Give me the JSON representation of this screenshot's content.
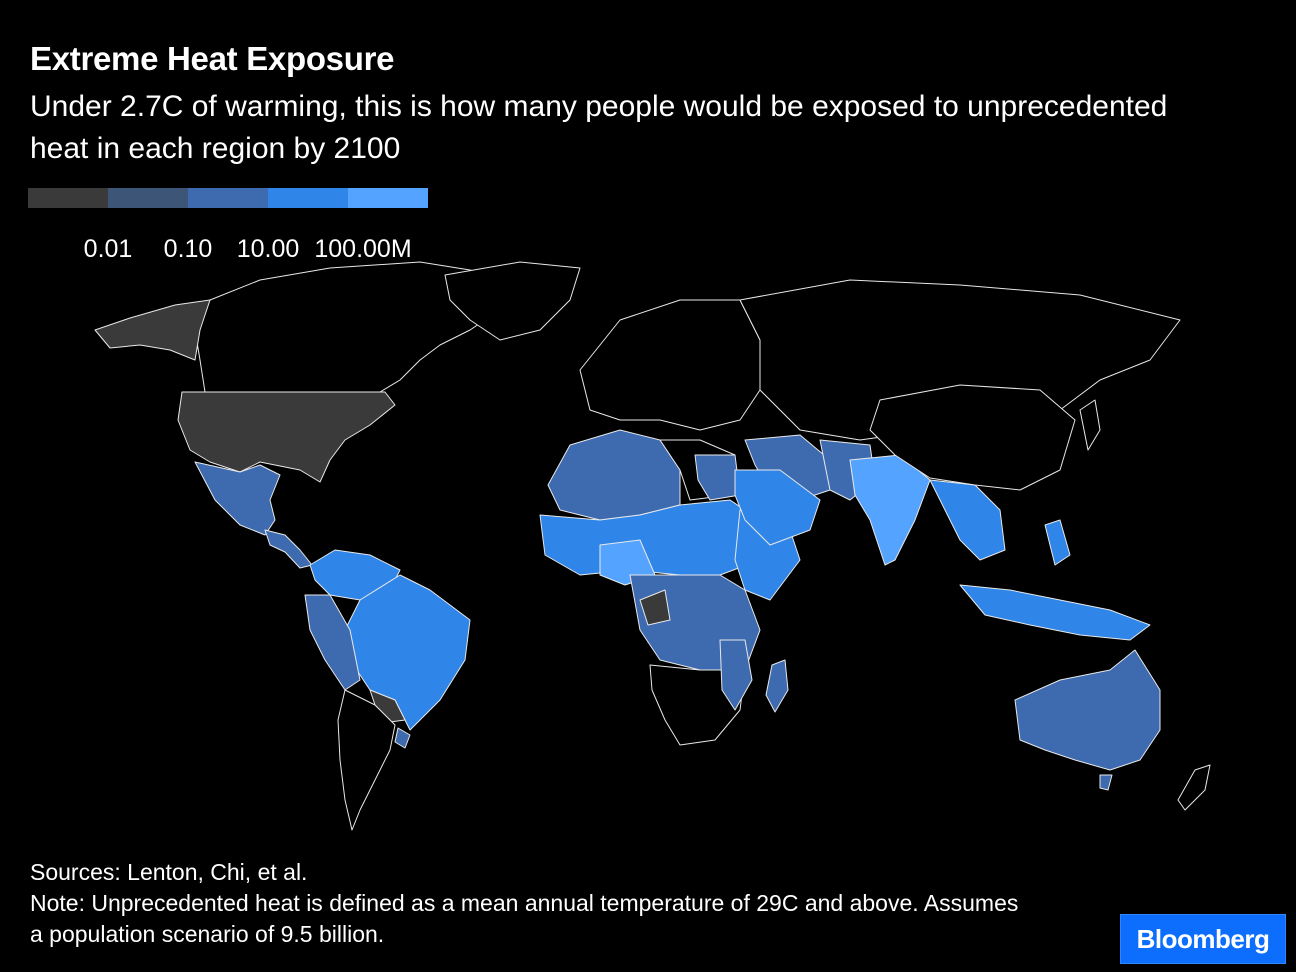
{
  "title": "Extreme Heat Exposure",
  "subtitle": "Under 2.7C of warming, this is how many people would be exposed to unprecedented heat in each region by 2100",
  "legend": {
    "colors": [
      "#3a3a3a",
      "#3d5678",
      "#3e6bb0",
      "#2f86e8",
      "#54a4ff"
    ],
    "ticks": [
      "0.01",
      "0.10",
      "10.00",
      "100.00M"
    ]
  },
  "colors": {
    "none": "#000000",
    "c0": "#3a3a3a",
    "c1": "#3d5678",
    "c2": "#3e6bb0",
    "c3": "#2f86e8",
    "c4": "#54a4ff"
  },
  "footer": {
    "sources": "Sources: Lenton, Chi, et al.",
    "note": "Note: Unprecedented heat is defined as a mean annual temperature of 29C and above. Assumes a population scenario of 9.5 billion."
  },
  "logo": "Bloomberg"
}
